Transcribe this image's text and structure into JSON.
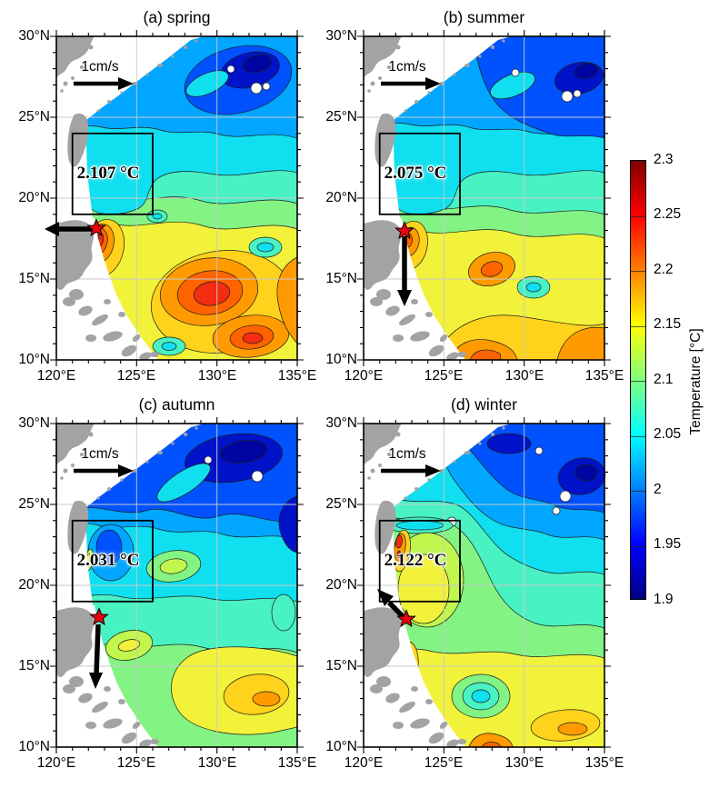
{
  "axes": {
    "x_ticks": [
      "120°E",
      "125°E",
      "130°E",
      "135°E"
    ],
    "y_ticks": [
      "30°N",
      "25°N",
      "20°N",
      "15°N",
      "10°N"
    ]
  },
  "colorbar": {
    "title": "Temperature [°C]",
    "ticks": [
      "2.3",
      "2.25",
      "2.2",
      "2.15",
      "2.1",
      "2.05",
      "2",
      "1.95",
      "1.9"
    ]
  },
  "panels": {
    "a": {
      "title": "(a) spring",
      "box_label": "2.107 °C",
      "scale_label": "1cm/s"
    },
    "b": {
      "title": "(b) summer",
      "box_label": "2.075 °C",
      "scale_label": "1cm/s"
    },
    "c": {
      "title": "(c) autumn",
      "box_label": "2.031 °C",
      "scale_label": "1cm/s"
    },
    "d": {
      "title": "(d) winter",
      "box_label": "2.122 °C",
      "scale_label": "1cm/s"
    }
  },
  "chart_data": {
    "type": "heatmap",
    "subtype": "filled-contour maps, 2x2 seasonal small multiples with shared colorbar",
    "variable": "Temperature",
    "units": "°C",
    "colorbar": {
      "range": [
        1.9,
        2.3
      ],
      "ticks": [
        2.3,
        2.25,
        2.2,
        2.15,
        2.1,
        2.05,
        2.0,
        1.95,
        1.9
      ],
      "colormap": "jet",
      "contour_interval": 0.025,
      "title": "Temperature [°C]",
      "position": "right, vertical"
    },
    "x_axis": {
      "label": "longitude",
      "range_deg_E": [
        120,
        135
      ],
      "major_ticks_deg_E": [
        120,
        125,
        130,
        135
      ],
      "minor_tick_step_deg": 1
    },
    "y_axis": {
      "label": "latitude",
      "range_deg_N": [
        10,
        30
      ],
      "major_ticks_deg_N": [
        30,
        25,
        20,
        15,
        10
      ],
      "minor_tick_step_deg": 1
    },
    "grid": "light gray lines every 5 degrees",
    "velocity_scale": {
      "label": "1cm/s",
      "location": "upper-left of each panel near 27°N, 121–124.5°E, black arrow pointing east"
    },
    "box_region": {
      "lon_deg_E": [
        121,
        126
      ],
      "lat_deg_N": [
        19,
        24
      ],
      "style": "black rectangle"
    },
    "star_marker": {
      "lon_deg_E": 122.4,
      "lat_deg_N": 18.0,
      "style": "red star, black current-vector arrow attached"
    },
    "panels": [
      {
        "label": "(a) spring",
        "box_mean_temperature_C": 2.107,
        "current_arrow": "westward from star, tip crossing 120°E axis",
        "features": [
          "cold pool <1.95 °C centered ~27.5°N 131.5°E",
          "warm cores ~2.25 °C near 14°N 129.5°E and 11.5°N 131.5°E",
          "coastal hot spot up to ~2.3 °C near 17.5°N 122.5°E",
          "box region ~2.05–2.1 °C (cyan/green)"
        ]
      },
      {
        "label": "(b) summer",
        "box_mean_temperature_C": 2.075,
        "current_arrow": "southward from star to ~13.5°N",
        "features": [
          "cold pool <1.95 °C near 28°N 133°E",
          "box region ~2.05 °C (cyan)",
          "~2.2 °C patches near 15.5°N 128°E, along coast and south edge"
        ]
      },
      {
        "label": "(c) autumn",
        "box_mean_temperature_C": 2.031,
        "current_arrow": "southward from star to ~13.8°N",
        "features": [
          "extensive cold (<2.0 °C) across north incl. box region ~1.95–2.05 °C",
          "yellow ~2.15–2.2 °C pool in southeast ~13.5°N 132°E",
          "green ~2.1 °C across south"
        ]
      },
      {
        "label": "(d) winter",
        "box_mean_temperature_C": 2.122,
        "current_arrow": "short, northwestward from star",
        "features": [
          "box region ~2.1–2.15 °C with coastal filaments up to ~2.25–2.3 °C",
          "cold band <1.95 °C along northeast",
          "cool eddy ~2.05 °C near 13°N 127.5°E",
          "yellow/orange ~2.15–2.2 °C south and along Luzon coast"
        ]
      }
    ],
    "basemap": "gray = land (SE China coast, Taiwan, Ryukyu island chain, Luzon/Philippines); white = no data"
  }
}
